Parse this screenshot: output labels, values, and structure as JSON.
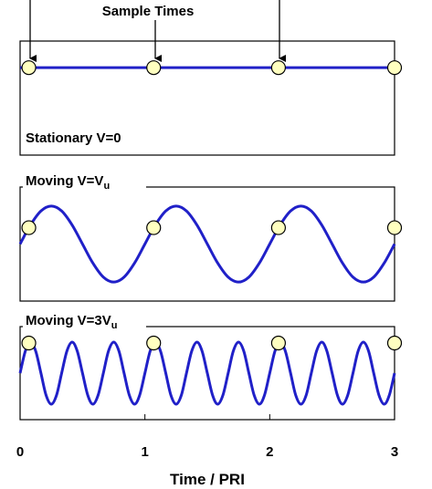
{
  "annotation": "Sample Times",
  "chart_data": [
    {
      "type": "line",
      "title": "Stationary V=0",
      "xlim": [
        0,
        3
      ],
      "ylim": [
        -1.5,
        1.5
      ],
      "x": [
        0,
        3
      ],
      "series": [
        {
          "color": "#2020c8",
          "values": [
            0.8,
            0.8
          ]
        }
      ],
      "samples": {
        "color": "#ffffc0",
        "x": [
          0.07,
          1.07,
          2.07,
          3
        ],
        "values": [
          0.8,
          0.8,
          0.8,
          0.8
        ]
      }
    },
    {
      "type": "line",
      "title": "Moving V=V",
      "title_subscript": "u",
      "xlim": [
        0,
        3
      ],
      "ylim": [
        -1.5,
        1.5
      ],
      "x": [
        0,
        0.083,
        0.167,
        0.25,
        0.333,
        0.417,
        0.5,
        0.583,
        0.667,
        0.75,
        0.833,
        0.917,
        1,
        1.083,
        1.167,
        1.25,
        1.333,
        1.417,
        1.5,
        1.583,
        1.667,
        1.75,
        1.833,
        1.917,
        2,
        2.083,
        2.167,
        2.25,
        2.333,
        2.417,
        2.5,
        2.583,
        2.667,
        2.75,
        2.833,
        2.917,
        3
      ],
      "series": [
        {
          "color": "#2020c8",
          "values": [
            0,
            0.5,
            0.87,
            1,
            0.87,
            0.5,
            0,
            -0.5,
            -0.87,
            -1,
            -0.87,
            -0.5,
            0,
            0.5,
            0.87,
            1,
            0.87,
            0.5,
            0,
            -0.5,
            -0.87,
            -1,
            -0.87,
            -0.5,
            0,
            0.5,
            0.87,
            1,
            0.87,
            0.5,
            0,
            -0.5,
            -0.87,
            -1,
            -0.87,
            -0.5,
            0
          ]
        }
      ],
      "samples": {
        "color": "#ffffc0",
        "x": [
          0.07,
          1.07,
          2.07,
          3
        ],
        "values": [
          0.43,
          0.43,
          0.43,
          0.43
        ]
      }
    },
    {
      "type": "line",
      "title": "Moving V=3V",
      "title_subscript": "u",
      "xlim": [
        0,
        3
      ],
      "ylim": [
        -1.5,
        1.5
      ],
      "xticks": [
        0,
        1,
        2,
        3
      ],
      "xlabel": "Time / PRI",
      "x": [
        0,
        0.042,
        0.083,
        0.125,
        0.167,
        0.208,
        0.25,
        0.292,
        0.333,
        0.375,
        0.417,
        0.458,
        0.5,
        0.542,
        0.583,
        0.625,
        0.667,
        0.708,
        0.75,
        0.792,
        0.833,
        0.875,
        0.917,
        0.958,
        1,
        1.042,
        1.083,
        1.125,
        1.167,
        1.208,
        1.25,
        1.292,
        1.333,
        1.375,
        1.417,
        1.458,
        1.5,
        1.542,
        1.583,
        1.625,
        1.667,
        1.708,
        1.75,
        1.792,
        1.833,
        1.875,
        1.917,
        1.958,
        2,
        2.042,
        2.083,
        2.125,
        2.167,
        2.208,
        2.25,
        2.292,
        2.333,
        2.375,
        2.417,
        2.458,
        2.5,
        2.542,
        2.583,
        2.625,
        2.667,
        2.708,
        2.75,
        2.792,
        2.833,
        2.875,
        2.917,
        2.958,
        3
      ],
      "series": [
        {
          "color": "#2020c8",
          "values": [
            0,
            0.71,
            1,
            0.71,
            0,
            -0.71,
            -1,
            -0.71,
            0,
            0.71,
            1,
            0.71,
            0,
            -0.71,
            -1,
            -0.71,
            0,
            0.71,
            1,
            0.71,
            0,
            -0.71,
            -1,
            -0.71,
            0,
            0.71,
            1,
            0.71,
            0,
            -0.71,
            -1,
            -0.71,
            0,
            0.71,
            1,
            0.71,
            0,
            -0.71,
            -1,
            -0.71,
            0,
            0.71,
            1,
            0.71,
            0,
            -0.71,
            -1,
            -0.71,
            0,
            0.71,
            1,
            0.71,
            0,
            -0.71,
            -1,
            -0.71,
            0,
            0.71,
            1,
            0.71,
            0,
            -0.71,
            -1,
            -0.71,
            0,
            0.71,
            1,
            0.71,
            0,
            -0.71,
            -1,
            -0.71,
            0
          ]
        }
      ],
      "samples": {
        "color": "#ffffc0",
        "x": [
          0.07,
          1.07,
          2.07,
          3
        ],
        "values": [
          0.97,
          0.97,
          0.97,
          0.97
        ]
      }
    }
  ]
}
